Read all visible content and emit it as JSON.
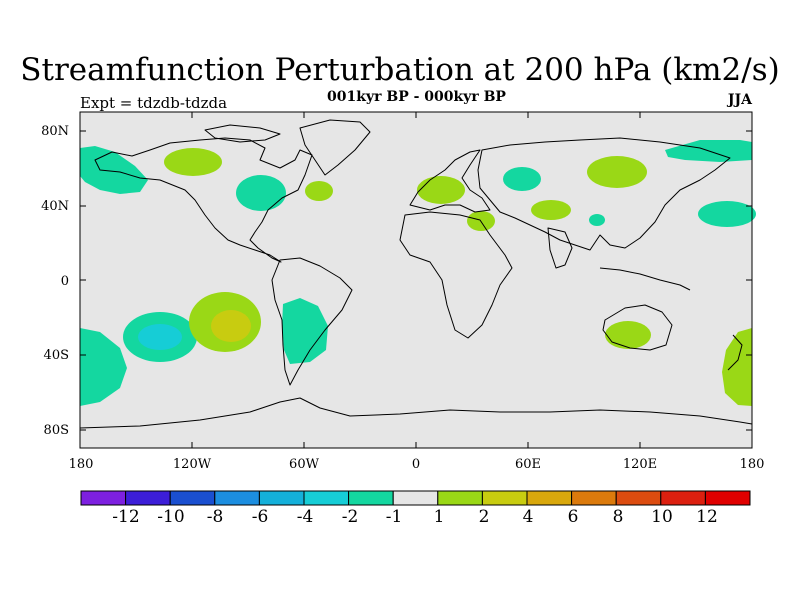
{
  "title": "Streamfunction Perturbation at 200 hPa (km2/s)",
  "subtitle": "001kyr BP - 000kyr BP",
  "left_label": "Expt = tdzdb-tdzda",
  "right_label": "JJA",
  "axes": {
    "lat_labels": [
      "80N",
      "40N",
      "0",
      "40S",
      "80S"
    ],
    "lon_labels": [
      "180",
      "120W",
      "60W",
      "0",
      "60E",
      "120E",
      "180"
    ]
  },
  "colorbar": {
    "labels": [
      "-12",
      "-10",
      "-8",
      "-6",
      "-4",
      "-2",
      "-1",
      "1",
      "2",
      "4",
      "6",
      "8",
      "10",
      "12"
    ],
    "colors": [
      "#7d20e0",
      "#3c1ed8",
      "#1a4fd0",
      "#1c8ee0",
      "#14b0da",
      "#16cdd6",
      "#14d7a0",
      "#e6e6e6",
      "#9ad816",
      "#c8cc10",
      "#d9a80c",
      "#db7a0c",
      "#dc4c10",
      "#dc2010",
      "#e00000"
    ]
  },
  "colors": {
    "ocean_bg": "#e6e6e6",
    "neg_1": "#14d7a0",
    "neg_2": "#16cdd6",
    "pos_1": "#9ad816",
    "pos_2": "#c8cc10"
  }
}
